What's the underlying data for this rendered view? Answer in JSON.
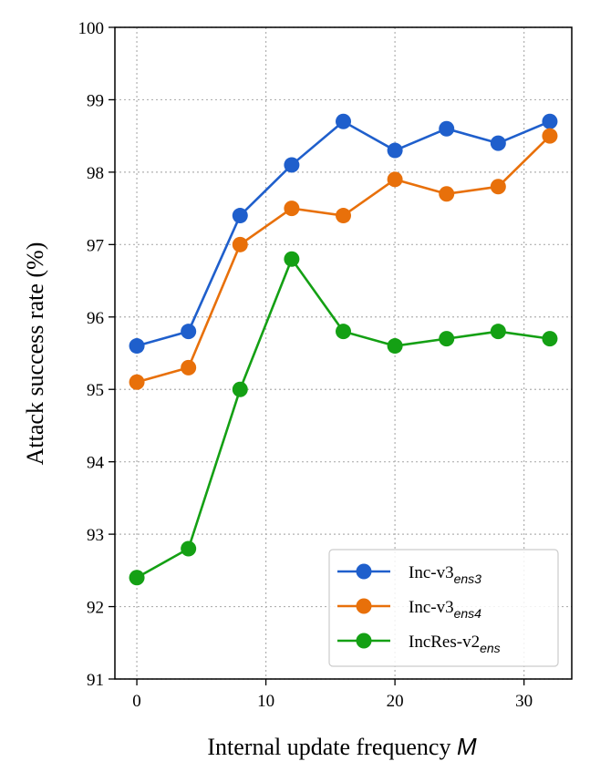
{
  "chart_data": {
    "type": "line",
    "title": "",
    "xlabel": "Internal update frequency",
    "xlabel_var": "M",
    "ylabel": "Attack success rate (%)",
    "xlim": [
      -1.7,
      33.7
    ],
    "ylim": [
      91,
      100
    ],
    "xticks": [
      0,
      10,
      20,
      30
    ],
    "yticks": [
      91,
      92,
      93,
      94,
      95,
      96,
      97,
      98,
      99,
      100
    ],
    "grid": true,
    "legend_position": "lower-right",
    "x": [
      0,
      4,
      8,
      12,
      16,
      20,
      24,
      28,
      32
    ],
    "series": [
      {
        "name": "Inc-v3",
        "name_sub": "ens3",
        "color": "#1f5fcc",
        "values": [
          95.6,
          95.8,
          97.4,
          98.1,
          98.7,
          98.3,
          98.6,
          98.4,
          98.7
        ]
      },
      {
        "name": "Inc-v3",
        "name_sub": "ens4",
        "color": "#e8700a",
        "values": [
          95.1,
          95.3,
          97.0,
          97.5,
          97.4,
          97.9,
          97.7,
          97.8,
          98.5
        ]
      },
      {
        "name": "IncRes-v2",
        "name_sub": "ens",
        "color": "#14a014",
        "values": [
          92.4,
          92.8,
          95.0,
          96.8,
          95.8,
          95.6,
          95.7,
          95.8,
          95.7
        ]
      }
    ]
  }
}
